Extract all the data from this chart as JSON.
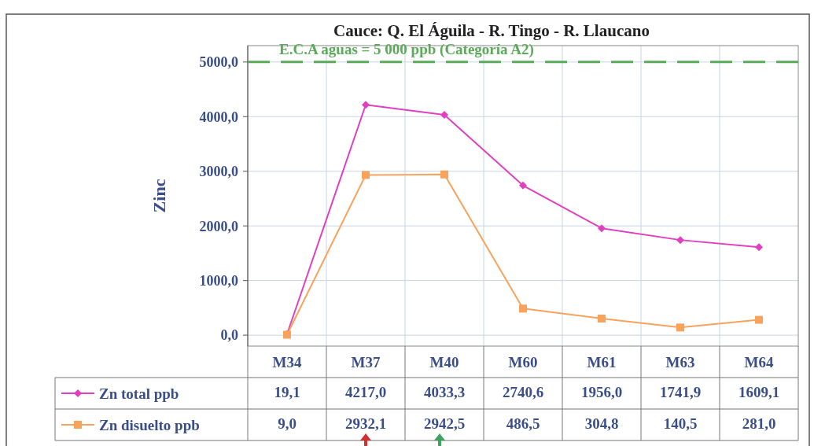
{
  "chart_data": {
    "type": "line",
    "title": "Cauce: Q. El Águila - R. Tingo - R. Llaucano",
    "ylabel": "Zinc",
    "categories": [
      "M34",
      "M37",
      "M40",
      "M60",
      "M61",
      "M63",
      "M64"
    ],
    "series": [
      {
        "name": "Zn total ppb",
        "color": "#e040c0",
        "marker": "diamond",
        "values": [
          19.1,
          4217.0,
          4033.3,
          2740.6,
          1956.0,
          1741.9,
          1609.1
        ],
        "value_labels": [
          "19,1",
          "4217,0",
          "4033,3",
          "2740,6",
          "1956,0",
          "1741,9",
          "1609,1"
        ]
      },
      {
        "name": "Zn disuelto ppb",
        "color": "#f7a35c",
        "marker": "square",
        "values": [
          9.0,
          2932.1,
          2942.5,
          486.5,
          304.8,
          140.5,
          281.0
        ],
        "value_labels": [
          "9,0",
          "2932,1",
          "2942,5",
          "486,5",
          "304,8",
          "140,5",
          "281,0"
        ]
      }
    ],
    "ylim": [
      -200,
      5300
    ],
    "yticks": [
      {
        "value": 0,
        "label": "0,0"
      },
      {
        "value": 1000,
        "label": "1000,0"
      },
      {
        "value": 2000,
        "label": "2000,0"
      },
      {
        "value": 3000,
        "label": "3000,0"
      },
      {
        "value": 4000,
        "label": "4000,0"
      },
      {
        "value": 5000,
        "label": "5000,0"
      }
    ],
    "ref_lines": [
      {
        "axis": "y",
        "value": 5000,
        "label": "E.C.A aguas = 5 000 ppb (Categoría A2)",
        "color": "#5aaa5a",
        "line_style": "dashed"
      }
    ],
    "grid": true,
    "legend": "bottom"
  }
}
